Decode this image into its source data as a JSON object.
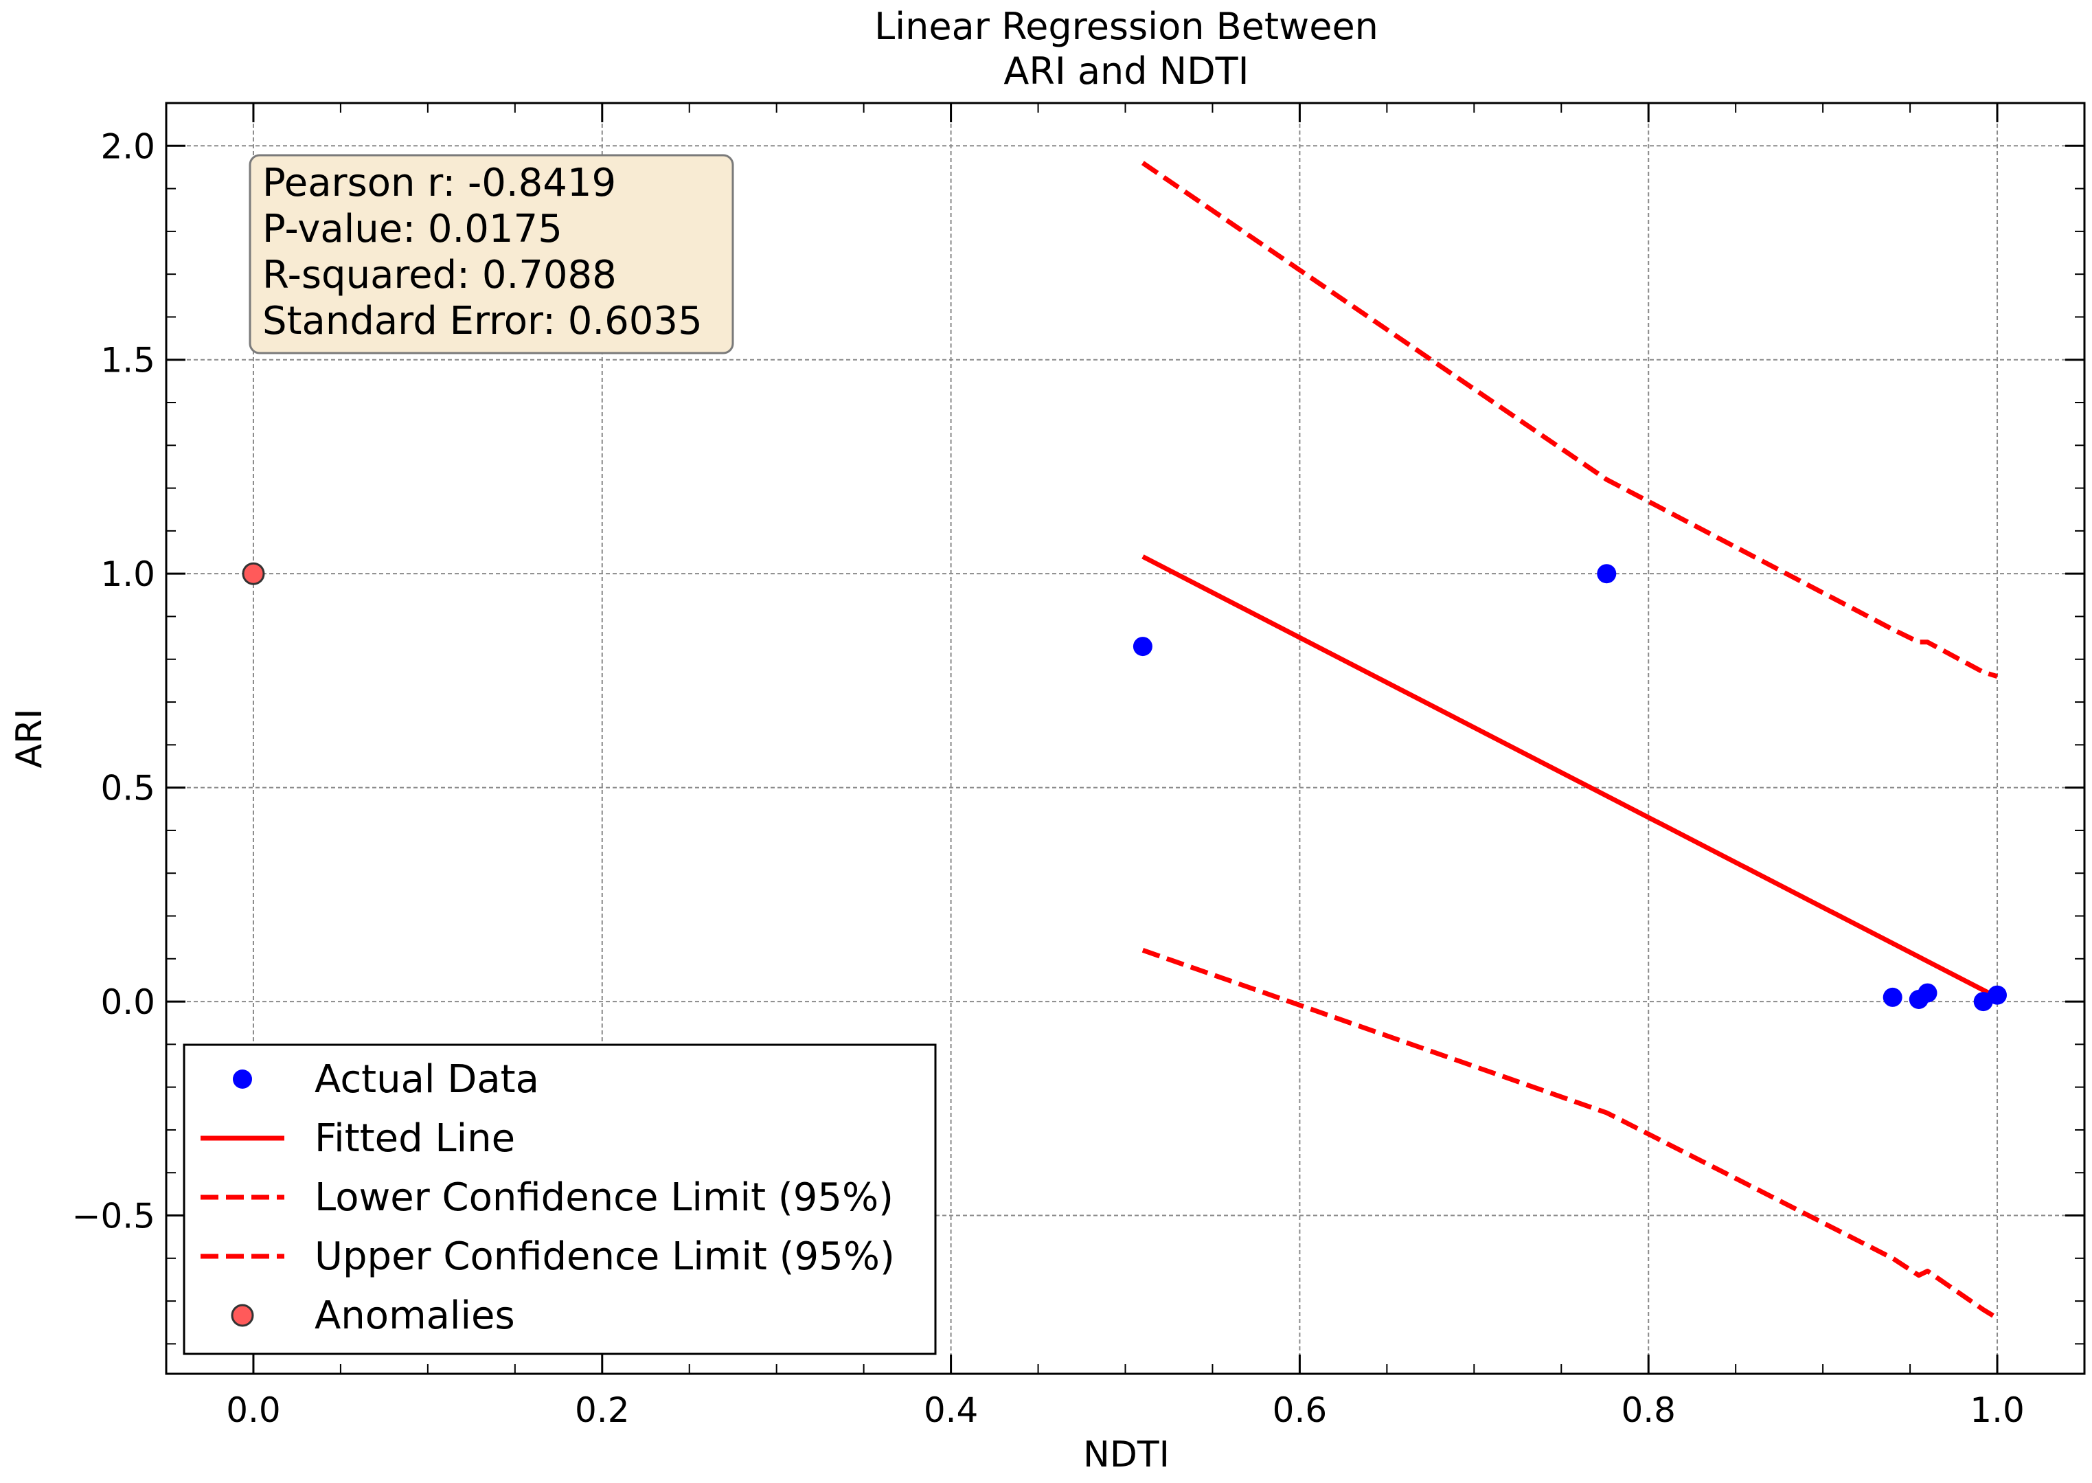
{
  "chart_data": {
    "type": "scatter",
    "title_lines": [
      "Linear Regression Between",
      "ARI and NDTI"
    ],
    "xlabel": "NDTI",
    "ylabel": "ARI",
    "xlim": [
      -0.05,
      1.05
    ],
    "ylim": [
      -0.87,
      2.1
    ],
    "x_ticks": [
      0.0,
      0.2,
      0.4,
      0.6,
      0.8,
      1.0
    ],
    "x_tick_labels": [
      "0.0",
      "0.2",
      "0.4",
      "0.6",
      "0.8",
      "1.0"
    ],
    "y_ticks": [
      -0.5,
      0.0,
      0.5,
      1.0,
      1.5,
      2.0
    ],
    "y_tick_labels": [
      "−0.5",
      "0.0",
      "0.5",
      "1.0",
      "1.5",
      "2.0"
    ],
    "grid": true,
    "legend_placement": "lower-left",
    "stats_box": {
      "lines": [
        "Pearson r: -0.8419",
        "P-value: 0.0175",
        "R-squared: 0.7088",
        "Standard Error: 0.6035"
      ],
      "background": "#f8ebd3"
    },
    "series": [
      {
        "name": "Actual Data",
        "kind": "scatter",
        "color": "#0000ff",
        "points": [
          [
            0.51,
            0.83
          ],
          [
            0.776,
            1.0
          ],
          [
            0.94,
            0.01
          ],
          [
            0.955,
            0.005
          ],
          [
            0.96,
            0.02
          ],
          [
            0.992,
            0.0
          ],
          [
            1.0,
            0.015
          ]
        ]
      },
      {
        "name": "Fitted Line",
        "kind": "line",
        "color": "#ff0000",
        "points": [
          [
            0.51,
            1.04
          ],
          [
            1.0,
            0.01
          ]
        ]
      },
      {
        "name": "Lower Confidence Limit (95%)",
        "kind": "dashed",
        "color": "#ff0000",
        "points": [
          [
            0.51,
            0.12
          ],
          [
            0.776,
            -0.26
          ],
          [
            0.94,
            -0.6
          ],
          [
            0.955,
            -0.64
          ],
          [
            0.96,
            -0.63
          ],
          [
            0.992,
            -0.72
          ],
          [
            1.0,
            -0.74
          ]
        ]
      },
      {
        "name": "Upper Confidence Limit (95%)",
        "kind": "dashed",
        "color": "#ff0000",
        "points": [
          [
            0.51,
            1.96
          ],
          [
            0.776,
            1.22
          ],
          [
            0.94,
            0.87
          ],
          [
            0.955,
            0.84
          ],
          [
            0.96,
            0.84
          ],
          [
            0.992,
            0.77
          ],
          [
            1.0,
            0.76
          ]
        ]
      },
      {
        "name": "Anomalies",
        "kind": "scatter",
        "color": "#ff5a5a",
        "points": [
          [
            0.0,
            1.0
          ]
        ]
      }
    ]
  }
}
